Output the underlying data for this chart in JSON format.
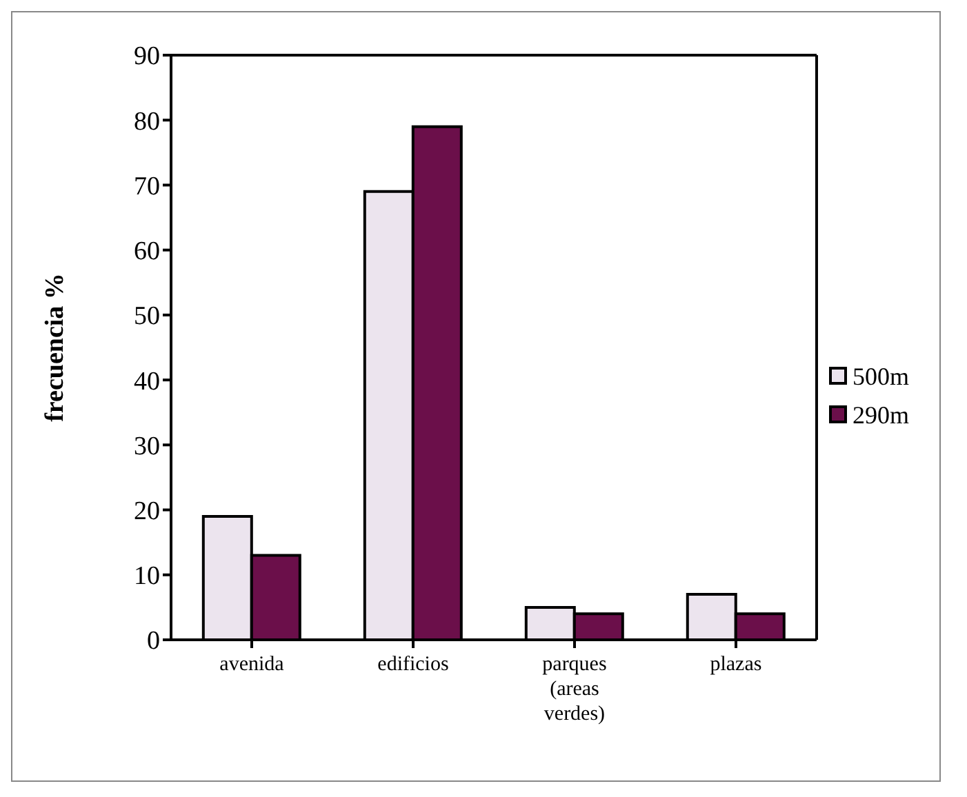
{
  "chart_data": {
    "type": "bar",
    "ylabel": "frecuencia %",
    "categories": [
      "avenida",
      "edificios",
      "parques (areas verdes)",
      "plazas"
    ],
    "series": [
      {
        "name": "500m",
        "color": "#ece4ee",
        "values": [
          19,
          69,
          5,
          7
        ]
      },
      {
        "name": "290m",
        "color": "#6b0f4a",
        "values": [
          13,
          79,
          4,
          4
        ]
      }
    ],
    "ylim": [
      0,
      90
    ],
    "yticks": [
      0,
      10,
      20,
      30,
      40,
      50,
      60,
      70,
      80,
      90
    ],
    "grid": false,
    "legend": "right"
  }
}
